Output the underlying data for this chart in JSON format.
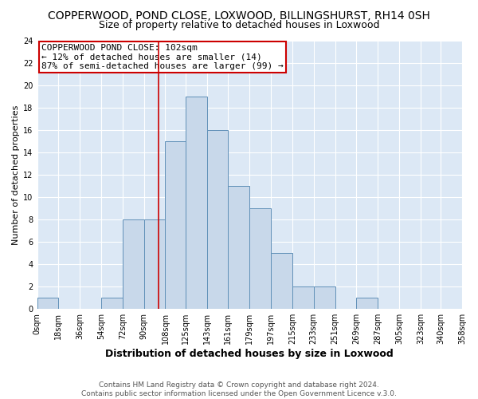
{
  "title": "COPPERWOOD, POND CLOSE, LOXWOOD, BILLINGSHURST, RH14 0SH",
  "subtitle": "Size of property relative to detached houses in Loxwood",
  "xlabel": "Distribution of detached houses by size in Loxwood",
  "ylabel": "Number of detached properties",
  "bin_edges": [
    0,
    18,
    36,
    54,
    72,
    90,
    108,
    125,
    143,
    161,
    179,
    197,
    215,
    233,
    251,
    269,
    287,
    305,
    323,
    340,
    358
  ],
  "bin_counts": [
    1,
    0,
    0,
    1,
    8,
    8,
    15,
    19,
    16,
    11,
    9,
    5,
    2,
    2,
    0,
    1,
    0,
    0,
    0,
    0
  ],
  "bar_facecolor": "#c8d8ea",
  "bar_edgecolor": "#6090b8",
  "background_color": "#dce8f5",
  "grid_color": "#ffffff",
  "fig_facecolor": "#ffffff",
  "vline_x": 102,
  "vline_color": "#cc0000",
  "annotation_box_text": "COPPERWOOD POND CLOSE: 102sqm\n← 12% of detached houses are smaller (14)\n87% of semi-detached houses are larger (99) →",
  "annotation_box_edgecolor": "#cc0000",
  "ylim": [
    0,
    24
  ],
  "yticks": [
    0,
    2,
    4,
    6,
    8,
    10,
    12,
    14,
    16,
    18,
    20,
    22,
    24
  ],
  "tick_labels": [
    "0sqm",
    "18sqm",
    "36sqm",
    "54sqm",
    "72sqm",
    "90sqm",
    "108sqm",
    "125sqm",
    "143sqm",
    "161sqm",
    "179sqm",
    "197sqm",
    "215sqm",
    "233sqm",
    "251sqm",
    "269sqm",
    "287sqm",
    "305sqm",
    "323sqm",
    "340sqm",
    "358sqm"
  ],
  "footer_text": "Contains HM Land Registry data © Crown copyright and database right 2024.\nContains public sector information licensed under the Open Government Licence v.3.0.",
  "title_fontsize": 10,
  "subtitle_fontsize": 9,
  "xlabel_fontsize": 9,
  "ylabel_fontsize": 8,
  "tick_fontsize": 7,
  "annotation_fontsize": 8,
  "footer_fontsize": 6.5
}
